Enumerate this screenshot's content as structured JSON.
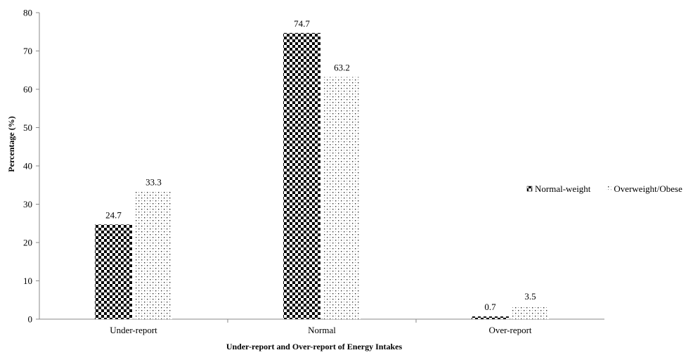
{
  "chart_data": {
    "type": "bar",
    "title": "",
    "xlabel": "Under-report and Over-report of Energy Intakes",
    "ylabel": "Percentage (%)",
    "ylim": [
      0,
      80
    ],
    "yticks": [
      0,
      10,
      20,
      30,
      40,
      50,
      60,
      70,
      80
    ],
    "categories": [
      "Under-report",
      "Normal",
      "Over-report"
    ],
    "series": [
      {
        "name": "Normal-weight",
        "values": [
          24.7,
          74.7,
          0.7
        ],
        "labels": [
          "24.7",
          "74.7",
          "0.7"
        ],
        "pattern": "checkerboard",
        "color": "#000000"
      },
      {
        "name": "Overweight/Obese",
        "values": [
          33.3,
          63.2,
          3.5
        ],
        "labels": [
          "33.3",
          "63.2",
          "3.5"
        ],
        "pattern": "sparse-dots",
        "color": "#000000"
      }
    ],
    "legend": {
      "position": "right"
    },
    "grid": false
  }
}
